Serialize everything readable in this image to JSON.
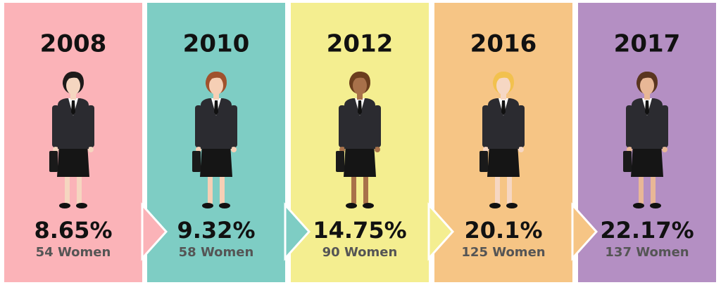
{
  "panels": [
    {
      "year": "2008",
      "percent": "8.65%",
      "women": "54 Women"
    },
    {
      "year": "2010",
      "percent": "9.32%",
      "women": "58 Women"
    },
    {
      "year": "2012",
      "percent": "14.75%",
      "women": "90 Women"
    },
    {
      "year": "2016",
      "percent": "20.1%",
      "women": "125 Women"
    },
    {
      "year": "2017",
      "percent": "22.17%",
      "women": "137 Women"
    }
  ]
}
